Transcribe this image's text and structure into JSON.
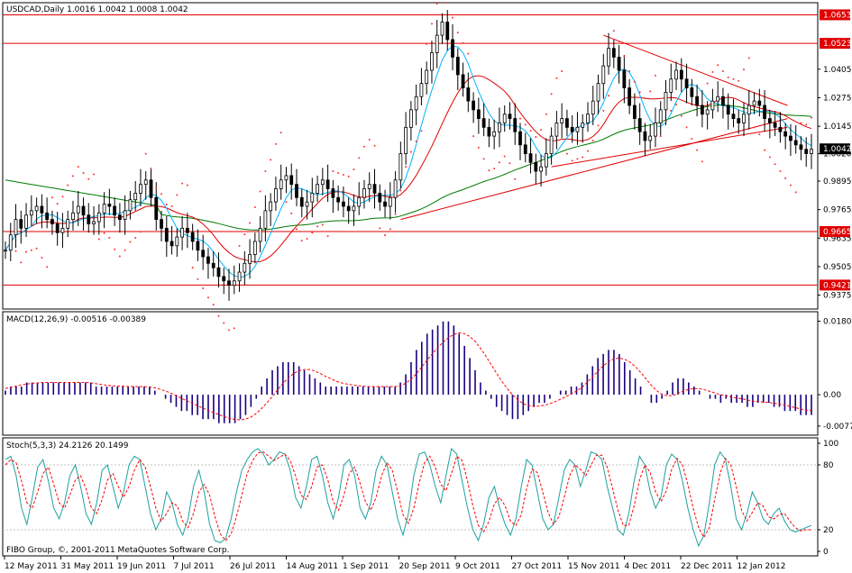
{
  "window": {
    "symbol_caption": "USDCAD,Daily  1.0016 1.0042 1.0008 1.0042",
    "copyright": "FIBO Group, ©, 2001-2011 MetaQuotes Software Corp."
  },
  "colors": {
    "background": "#ffffff",
    "frame": "#000000",
    "bull_candle": "#000000",
    "bear_candle": "#000000",
    "level_lines": "#e00000",
    "trend_lines": "#e00000",
    "ma_fast": "#00b4ff",
    "ma_mid": "#e00000",
    "ma_slow": "#007a00",
    "sar": "#ff3030",
    "macd_hist": "#1a0080",
    "macd_signal": "#ff0000",
    "stoch_main": "#20a0a0",
    "stoch_signal": "#ff0000",
    "level_label_bg": "#e00000",
    "price_label_bg": "#000000"
  },
  "chart_data": [
    {
      "type": "candlestick",
      "caption": "USDCAD,Daily  1.0016 1.0042 1.0008 1.0042",
      "ylim": [
        0.932,
        1.07
      ],
      "y_ticks": [
        1.0405,
        1.0275,
        1.0145,
        1.002,
        0.9895,
        0.9765,
        0.9635,
        0.9505,
        0.9375
      ],
      "y_tick_labels": [
        "1.0405",
        "1.0275",
        "1.0145",
        "1.0020",
        "0.9895",
        "0.9765",
        "0.9635",
        "0.9505",
        "0.9375"
      ],
      "horizontal_levels": [
        {
          "value": 1.0653,
          "label": "1.0653"
        },
        {
          "value": 1.0523,
          "label": "1.0523"
        },
        {
          "value": 0.9665,
          "label": "0.9665"
        },
        {
          "value": 0.9421,
          "label": "0.9421"
        }
      ],
      "last_price": {
        "value": 1.0042,
        "label": "1.0042"
      },
      "x_labels": [
        "12 May 2011",
        "31 May 2011",
        "19 Jun 2011",
        "7 Jul 2011",
        "26 Jul 2011",
        "14 Aug 2011",
        "1 Sep 2011",
        "20 Sep 2011",
        "9 Oct 2011",
        "27 Oct 2011",
        "15 Nov 2011",
        "4 Dec 2011",
        "22 Dec 2011",
        "12 Jan 2012"
      ],
      "close_series": [
        0.958,
        0.965,
        0.972,
        0.968,
        0.974,
        0.976,
        0.978,
        0.975,
        0.972,
        0.97,
        0.966,
        0.968,
        0.972,
        0.975,
        0.978,
        0.974,
        0.97,
        0.971,
        0.975,
        0.979,
        0.978,
        0.974,
        0.972,
        0.976,
        0.981,
        0.984,
        0.988,
        0.99,
        0.982,
        0.972,
        0.968,
        0.962,
        0.96,
        0.964,
        0.968,
        0.966,
        0.962,
        0.958,
        0.955,
        0.952,
        0.95,
        0.946,
        0.944,
        0.942,
        0.944,
        0.948,
        0.952,
        0.956,
        0.962,
        0.968,
        0.976,
        0.98,
        0.986,
        0.99,
        0.992,
        0.988,
        0.982,
        0.978,
        0.98,
        0.984,
        0.988,
        0.99,
        0.986,
        0.982,
        0.98,
        0.978,
        0.976,
        0.978,
        0.982,
        0.986,
        0.988,
        0.984,
        0.98,
        0.978,
        0.982,
        0.99,
        1.002,
        1.014,
        1.022,
        1.028,
        1.034,
        1.04,
        1.048,
        1.056,
        1.062,
        1.054,
        1.046,
        1.038,
        1.032,
        1.026,
        1.022,
        1.018,
        1.014,
        1.01,
        1.012,
        1.016,
        1.02,
        1.018,
        1.012,
        1.006,
        1.002,
        0.998,
        0.994,
        0.996,
        1.002,
        1.01,
        1.016,
        1.018,
        1.014,
        1.012,
        1.014,
        1.016,
        1.02,
        1.026,
        1.034,
        1.042,
        1.05,
        1.046,
        1.04,
        1.032,
        1.024,
        1.018,
        1.012,
        1.008,
        1.01,
        1.016,
        1.022,
        1.03,
        1.036,
        1.04,
        1.036,
        1.032,
        1.028,
        1.024,
        1.02,
        1.022,
        1.026,
        1.028,
        1.024,
        1.02,
        1.018,
        1.016,
        1.02,
        1.024,
        1.026,
        1.024,
        1.018,
        1.016,
        1.014,
        1.012,
        1.01,
        1.008,
        1.006,
        1.004,
        1.002,
        1.004
      ]
    },
    {
      "type": "macd",
      "caption": "MACD(12,26,9) -0.00516 -0.00389",
      "y_ticks": [
        0.01806,
        0.0,
        -0.0077
      ],
      "y_tick_labels": [
        "0.01806",
        "0.00",
        "-0.0077"
      ],
      "ylim": [
        -0.0095,
        0.0195
      ],
      "histogram": [
        0.001,
        0.002,
        0.002,
        0.002,
        0.003,
        0.003,
        0.003,
        0.003,
        0.003,
        0.003,
        0.003,
        0.003,
        0.003,
        0.003,
        0.003,
        0.003,
        0.003,
        0.002,
        0.002,
        0.002,
        0.002,
        0.002,
        0.002,
        0.002,
        0.002,
        0.002,
        0.002,
        0.002,
        0.001,
        0.0,
        -0.001,
        -0.002,
        -0.003,
        -0.004,
        -0.004,
        -0.005,
        -0.005,
        -0.006,
        -0.006,
        -0.006,
        -0.007,
        -0.007,
        -0.007,
        -0.007,
        -0.006,
        -0.005,
        -0.003,
        -0.001,
        0.002,
        0.004,
        0.006,
        0.007,
        0.008,
        0.008,
        0.008,
        0.007,
        0.006,
        0.005,
        0.004,
        0.003,
        0.002,
        0.002,
        0.002,
        0.002,
        0.002,
        0.002,
        0.002,
        0.002,
        0.002,
        0.002,
        0.002,
        0.002,
        0.002,
        0.002,
        0.003,
        0.005,
        0.008,
        0.011,
        0.013,
        0.015,
        0.016,
        0.017,
        0.018,
        0.018,
        0.017,
        0.015,
        0.012,
        0.009,
        0.006,
        0.003,
        0.001,
        -0.001,
        -0.003,
        -0.004,
        -0.005,
        -0.006,
        -0.006,
        -0.005,
        -0.004,
        -0.003,
        -0.002,
        -0.002,
        -0.001,
        0.0,
        0.001,
        0.001,
        0.002,
        0.002,
        0.003,
        0.005,
        0.007,
        0.009,
        0.01,
        0.011,
        0.011,
        0.01,
        0.008,
        0.006,
        0.004,
        0.002,
        0.0,
        -0.002,
        -0.002,
        -0.001,
        0.001,
        0.003,
        0.004,
        0.004,
        0.003,
        0.002,
        0.001,
        0.0,
        -0.001,
        -0.001,
        -0.002,
        -0.001,
        -0.002,
        -0.002,
        -0.002,
        -0.003,
        -0.003,
        -0.002,
        -0.002,
        -0.002,
        -0.003,
        -0.003,
        -0.004,
        -0.004,
        -0.004,
        -0.005,
        -0.005,
        -0.005
      ],
      "signal": [
        0.0015,
        0.0018,
        0.0021,
        0.0024,
        0.0026,
        0.0028,
        0.0029,
        0.003,
        0.003,
        0.003,
        0.003,
        0.003,
        0.003,
        0.003,
        0.003,
        0.003,
        0.0029,
        0.0027,
        0.0025,
        0.0023,
        0.0022,
        0.0021,
        0.0021,
        0.002,
        0.002,
        0.002,
        0.002,
        0.0019,
        0.0017,
        0.0013,
        0.0009,
        0.0004,
        -0.0002,
        -0.0009,
        -0.0015,
        -0.0021,
        -0.0027,
        -0.0033,
        -0.0039,
        -0.0044,
        -0.0049,
        -0.0054,
        -0.0058,
        -0.0061,
        -0.0062,
        -0.006,
        -0.0055,
        -0.0046,
        -0.0034,
        -0.002,
        -0.0005,
        0.0012,
        0.0028,
        0.0041,
        0.0052,
        0.0059,
        0.0062,
        0.0062,
        0.0058,
        0.0052,
        0.0045,
        0.0039,
        0.0033,
        0.0029,
        0.0026,
        0.0024,
        0.0022,
        0.0021,
        0.002,
        0.002,
        0.002,
        0.002,
        0.002,
        0.002,
        0.0022,
        0.0028,
        0.0038,
        0.0052,
        0.0068,
        0.0085,
        0.0101,
        0.0116,
        0.0129,
        0.014,
        0.0148,
        0.0152,
        0.015,
        0.0143,
        0.0131,
        0.0114,
        0.0095,
        0.0074,
        0.0053,
        0.0033,
        0.0015,
        0.0,
        -0.0013,
        -0.0022,
        -0.0027,
        -0.0029,
        -0.0028,
        -0.0026,
        -0.0022,
        -0.0017,
        -0.0011,
        -0.0005,
        0.0002,
        0.0009,
        0.0018,
        0.003,
        0.0044,
        0.0058,
        0.0071,
        0.0081,
        0.0088,
        0.009,
        0.0087,
        0.008,
        0.0069,
        0.0055,
        0.0039,
        0.0023,
        0.001,
        0.0001,
        -0.0003,
        -0.0002,
        0.0003,
        0.0009,
        0.0013,
        0.0015,
        0.0015,
        0.0012,
        0.0008,
        0.0004,
        0.0,
        -0.0003,
        -0.0006,
        -0.0008,
        -0.001,
        -0.0013,
        -0.0016,
        -0.0017,
        -0.0018,
        -0.0019,
        -0.0021,
        -0.0023,
        -0.0026,
        -0.0029,
        -0.0032,
        -0.0035,
        -0.0038,
        -0.0039
      ]
    },
    {
      "type": "stochastic",
      "caption": "Stoch(5,3,3) 24.2126 20.1499",
      "y_ticks": [
        100,
        80,
        20,
        0
      ],
      "y_tick_labels": [
        "100",
        "80",
        "20",
        "0"
      ],
      "ylim": [
        0,
        100
      ],
      "main": [
        85,
        88,
        70,
        40,
        25,
        50,
        78,
        85,
        65,
        40,
        30,
        45,
        70,
        80,
        60,
        35,
        25,
        45,
        75,
        80,
        60,
        40,
        55,
        80,
        88,
        85,
        60,
        35,
        20,
        30,
        55,
        45,
        25,
        15,
        30,
        60,
        75,
        55,
        25,
        10,
        8,
        12,
        30,
        55,
        75,
        85,
        92,
        95,
        90,
        80,
        85,
        92,
        90,
        75,
        50,
        40,
        60,
        85,
        88,
        70,
        45,
        30,
        50,
        80,
        85,
        70,
        40,
        30,
        45,
        75,
        88,
        80,
        55,
        30,
        15,
        35,
        70,
        90,
        92,
        80,
        60,
        45,
        70,
        95,
        90,
        65,
        40,
        20,
        10,
        25,
        50,
        60,
        40,
        25,
        15,
        30,
        60,
        85,
        80,
        55,
        30,
        20,
        25,
        50,
        75,
        85,
        80,
        60,
        75,
        92,
        90,
        85,
        60,
        40,
        20,
        15,
        35,
        65,
        88,
        80,
        55,
        40,
        50,
        80,
        90,
        85,
        65,
        40,
        20,
        5,
        15,
        45,
        80,
        92,
        85,
        60,
        30,
        20,
        35,
        55,
        45,
        30,
        25,
        35,
        40,
        28,
        20,
        18,
        20,
        22,
        24
      ],
      "signal": [
        80,
        85,
        82,
        65,
        45,
        40,
        55,
        72,
        78,
        62,
        45,
        40,
        52,
        66,
        70,
        58,
        40,
        35,
        48,
        66,
        72,
        60,
        50,
        60,
        75,
        85,
        78,
        60,
        40,
        28,
        35,
        45,
        42,
        28,
        22,
        35,
        55,
        62,
        52,
        32,
        16,
        10,
        16,
        32,
        52,
        72,
        84,
        91,
        92,
        88,
        84,
        87,
        90,
        84,
        70,
        52,
        48,
        60,
        78,
        80,
        66,
        46,
        38,
        52,
        72,
        78,
        63,
        46,
        38,
        50,
        70,
        82,
        75,
        55,
        34,
        26,
        40,
        63,
        82,
        88,
        78,
        62,
        56,
        72,
        88,
        84,
        65,
        42,
        24,
        18,
        28,
        44,
        50,
        42,
        28,
        24,
        34,
        58,
        76,
        73,
        55,
        36,
        25,
        32,
        50,
        70,
        80,
        76,
        70,
        80,
        89,
        89,
        78,
        58,
        38,
        24,
        24,
        42,
        66,
        80,
        73,
        55,
        46,
        56,
        76,
        86,
        80,
        62,
        40,
        22,
        13,
        22,
        48,
        72,
        86,
        80,
        60,
        38,
        28,
        36,
        45,
        42,
        32,
        30,
        34,
        35,
        28,
        22,
        19,
        20,
        20
      ]
    }
  ]
}
